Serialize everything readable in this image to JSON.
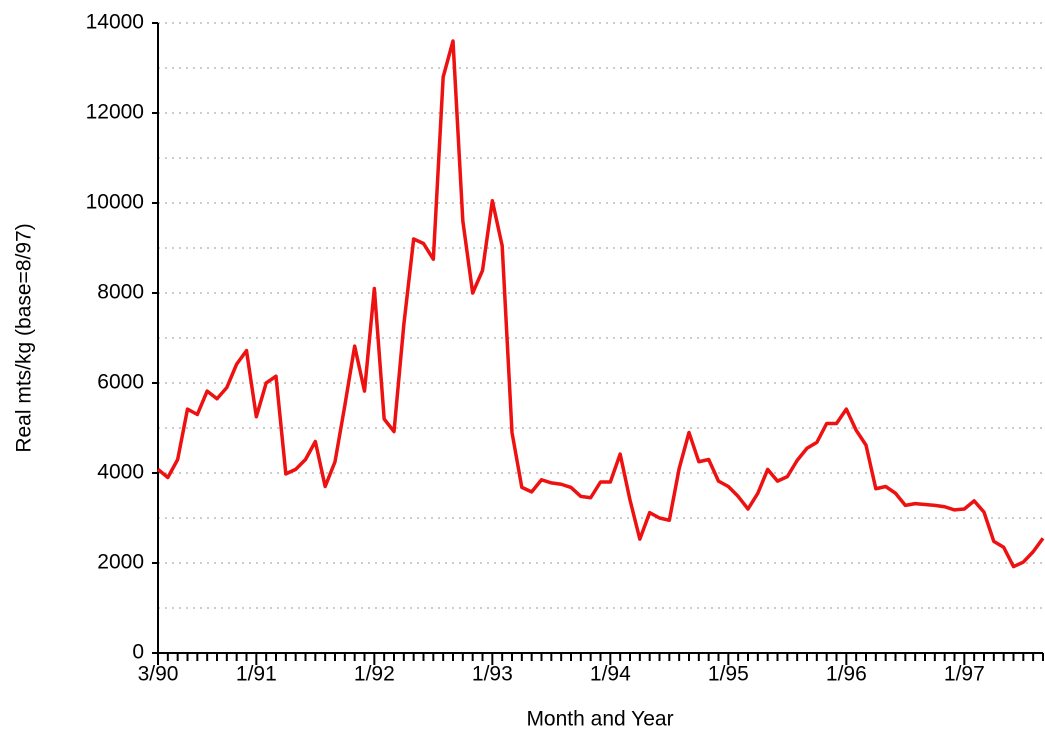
{
  "chart_data": {
    "type": "line",
    "x_label": "Month and Year",
    "y_label": "Real mts/kg (base=8/97)",
    "categories": [
      "3/90",
      null,
      null,
      null,
      null,
      null,
      null,
      null,
      null,
      null,
      "1/91",
      null,
      null,
      null,
      null,
      null,
      null,
      null,
      null,
      null,
      null,
      null,
      "1/92",
      null,
      null,
      null,
      null,
      null,
      null,
      null,
      null,
      null,
      null,
      null,
      "1/93",
      null,
      null,
      null,
      null,
      null,
      null,
      null,
      null,
      null,
      null,
      null,
      "1/94",
      null,
      null,
      null,
      null,
      null,
      null,
      null,
      null,
      null,
      null,
      null,
      "1/95",
      null,
      null,
      null,
      null,
      null,
      null,
      null,
      null,
      null,
      null,
      null,
      "1/96",
      null,
      null,
      null,
      null,
      null,
      null,
      null,
      null,
      null,
      null,
      null,
      "1/97",
      null,
      null,
      null,
      null,
      null,
      null,
      null,
      null
    ],
    "series": [
      {
        "color": "#ee1111",
        "values": [
          4080,
          3900,
          4300,
          5420,
          5300,
          5820,
          5650,
          5900,
          6420,
          6720,
          5250,
          6000,
          6150,
          3980,
          4080,
          4300,
          4700,
          3700,
          4250,
          5500,
          6820,
          5820,
          8100,
          5200,
          4920,
          7300,
          9200,
          9100,
          8750,
          12800,
          13600,
          9600,
          8000,
          8500,
          10050,
          9050,
          4900,
          3680,
          3580,
          3850,
          3780,
          3750,
          3680,
          3480,
          3450,
          3800,
          3800,
          4420,
          3400,
          2530,
          3120,
          3000,
          2950,
          4100,
          4900,
          4250,
          4300,
          3820,
          3700,
          3480,
          3200,
          3550,
          4080,
          3820,
          3920,
          4280,
          4550,
          4680,
          5100,
          5100,
          5420,
          4950,
          4620,
          3650,
          3700,
          3550,
          3280,
          3320,
          3300,
          3280,
          3250,
          3180,
          3200,
          3380,
          3130,
          2480,
          2350,
          1920,
          2020,
          2250,
          2550
        ]
      }
    ],
    "ylim": [
      0,
      14000
    ],
    "yticks": [
      0,
      2000,
      4000,
      6000,
      8000,
      10000,
      12000,
      14000
    ],
    "minor_yticks": [
      1000,
      3000,
      5000,
      7000,
      9000,
      11000,
      13000
    ],
    "grid": true
  }
}
